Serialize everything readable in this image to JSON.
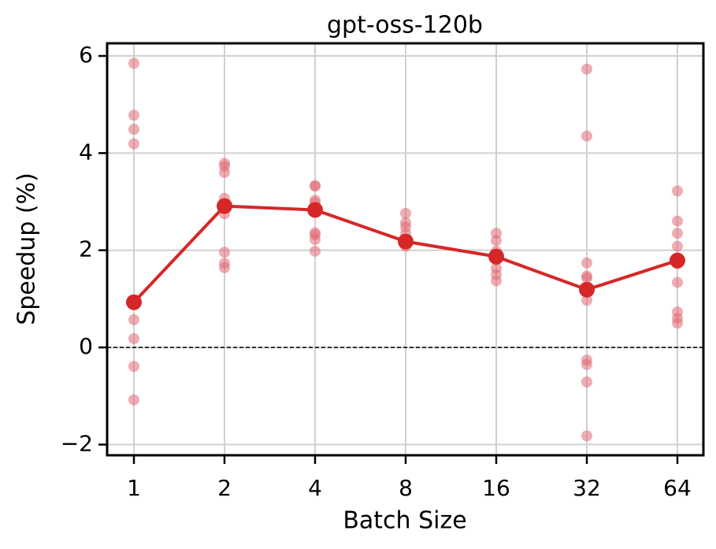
{
  "chart_data": {
    "type": "line",
    "title": "gpt-oss-120b",
    "x_label": "Batch Size",
    "y_label": "Speedup (%)",
    "categories": [
      "1",
      "2",
      "4",
      "8",
      "16",
      "32",
      "64"
    ],
    "values": [
      0.93,
      2.91,
      2.83,
      2.18,
      1.87,
      1.19,
      1.79
    ],
    "color": "#d62728",
    "points": [
      [
        5.85,
        4.78,
        4.49,
        4.19,
        0.92,
        0.57,
        0.18,
        -0.39,
        -1.08
      ],
      [
        3.79,
        3.73,
        3.6,
        3.07,
        2.93,
        2.75,
        1.96,
        1.73,
        1.64
      ],
      [
        3.33,
        3.32,
        3.03,
        2.98,
        2.83,
        2.36,
        2.32,
        2.22,
        1.98
      ],
      [
        2.76,
        2.57,
        2.48,
        2.35,
        2.2,
        2.15,
        2.08
      ],
      [
        2.35,
        2.2,
        1.98,
        1.88,
        1.8,
        1.63,
        1.5,
        1.37
      ],
      [
        5.73,
        4.35,
        1.74,
        1.47,
        1.43,
        1.19,
        0.97,
        -0.26,
        -0.35,
        -0.71,
        -1.82
      ],
      [
        3.22,
        2.6,
        2.35,
        2.08,
        1.8,
        1.72,
        1.34,
        0.73,
        0.6,
        0.5
      ]
    ],
    "point_color": "#e06a74",
    "reference_line": 0,
    "ylim": [
      -2.22,
      6.26
    ],
    "yticks": [
      {
        "value": -2,
        "label": "−2"
      },
      0,
      2,
      4,
      6
    ],
    "grid": true
  }
}
